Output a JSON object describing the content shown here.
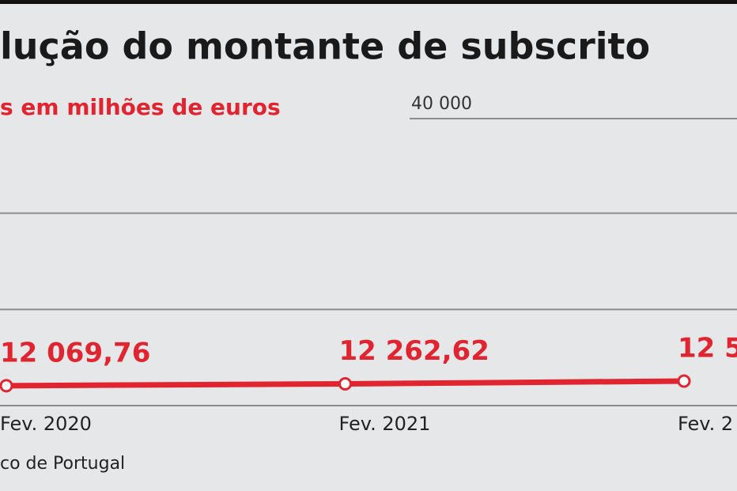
{
  "chart_data": {
    "type": "line",
    "title": "lução do montante de subscrito",
    "subtitle": "s em milhões de euros",
    "source": "co de Portugal",
    "categories": [
      "Fev. 2020",
      "Fev. 2021",
      "Fev. 2"
    ],
    "series": [
      {
        "color": "#e02530",
        "values": [
          12069.76,
          12262.62,
          12550
        ],
        "value_labels": [
          "12 069,76",
          "12 262,62",
          "12 5"
        ]
      }
    ],
    "ylim": [
      10000,
      40000
    ],
    "yticks": [
      {
        "value": 10000,
        "label": null
      },
      {
        "value": 20000,
        "label": null
      },
      {
        "value": 30000,
        "label": null
      },
      {
        "value": 40000,
        "label": "40 000"
      }
    ],
    "grid": true
  }
}
